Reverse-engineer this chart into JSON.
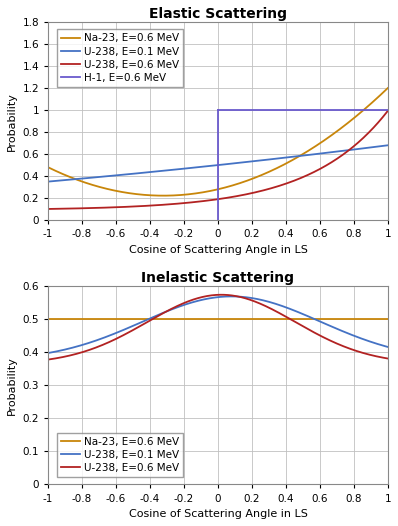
{
  "elastic_title": "Elastic Scattering",
  "inelastic_title": "Inelastic Scattering",
  "xlabel": "Cosine of Scattering Angle in LS",
  "ylabel": "Probability",
  "elastic_ylim": [
    0.0,
    1.8
  ],
  "elastic_yticks": [
    0.0,
    0.2,
    0.4,
    0.6,
    0.8,
    1.0,
    1.2,
    1.4,
    1.6,
    1.8
  ],
  "inelastic_ylim": [
    0.0,
    0.6
  ],
  "inelastic_yticks": [
    0.0,
    0.1,
    0.2,
    0.3,
    0.4,
    0.5,
    0.6
  ],
  "xlim": [
    -1.0,
    1.0
  ],
  "xticks": [
    -1.0,
    -0.8,
    -0.6,
    -0.4,
    -0.2,
    0.0,
    0.2,
    0.4,
    0.6,
    0.8,
    1.0
  ],
  "elastic_legend": [
    {
      "label": "Na-23, E=0.6 MeV",
      "color": "#C8860A"
    },
    {
      "label": "U-238, E=0.1 MeV",
      "color": "#4472C4"
    },
    {
      "label": "U-238, E=0.6 MeV",
      "color": "#B22222"
    },
    {
      "label": "H-1, E=0.6 MeV",
      "color": "#6A5ACD"
    }
  ],
  "inelastic_legend": [
    {
      "label": "Na-23, E=0.6 MeV",
      "color": "#C8860A"
    },
    {
      "label": "U-238, E=0.1 MeV",
      "color": "#4472C4"
    },
    {
      "label": "U-238, E=0.6 MeV",
      "color": "#B22222"
    }
  ],
  "bg_color": "#FFFFFF",
  "grid_color": "#C0C0C0",
  "title_fontsize": 10,
  "label_fontsize": 8,
  "tick_fontsize": 7.5,
  "legend_fontsize": 7.5
}
